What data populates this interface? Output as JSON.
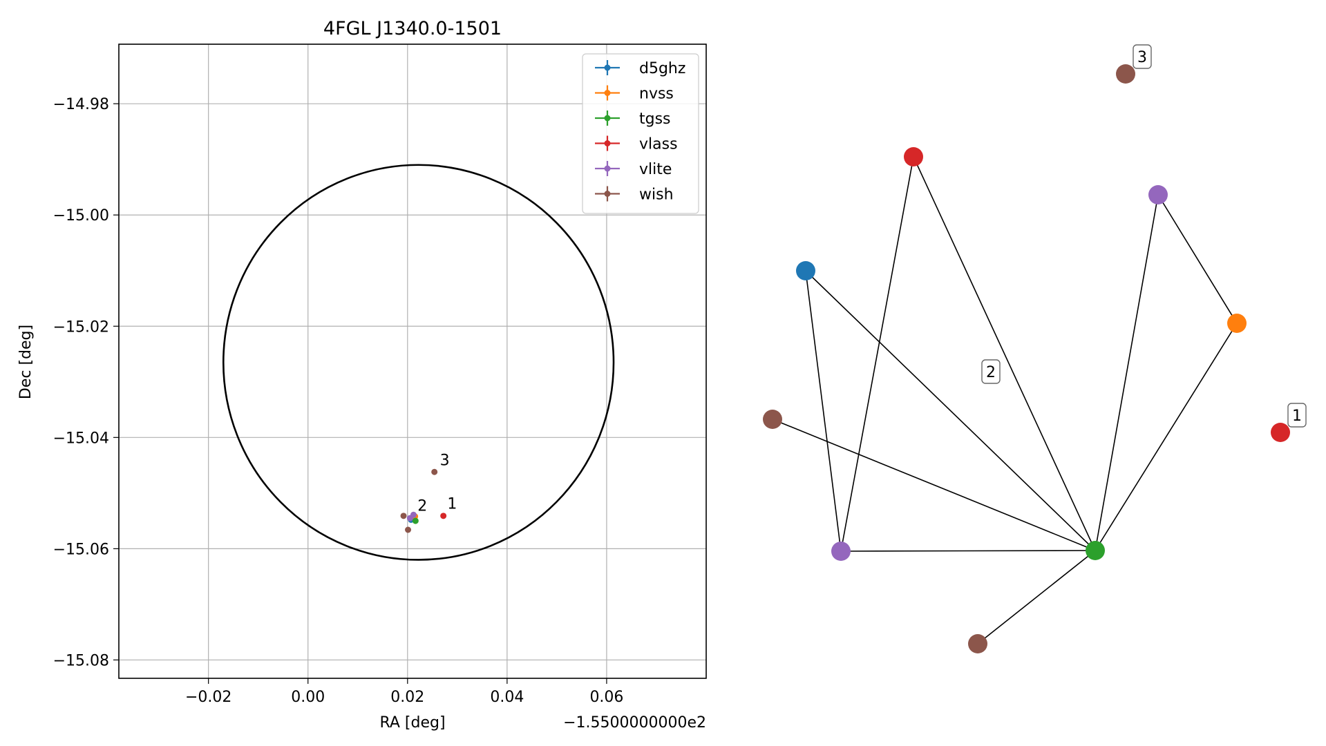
{
  "chart_data": [
    {
      "type": "scatter",
      "title": "4FGL J1340.0-1501",
      "xlabel": "RA [deg]",
      "ylabel": "Dec [deg]",
      "x_offset_label": "−1.5500000000e2",
      "xlim": [
        -0.038,
        0.08
      ],
      "ylim": [
        -15.0833,
        -14.9693
      ],
      "xticks": [
        -0.02,
        0.0,
        0.02,
        0.04,
        0.06
      ],
      "xtick_labels": [
        "−0.02",
        "0.00",
        "0.02",
        "0.04",
        "0.06"
      ],
      "yticks": [
        -14.98,
        -15.0,
        -15.02,
        -15.04,
        -15.06,
        -15.08
      ],
      "ytick_labels": [
        "−14.98",
        "−15.00",
        "−15.02",
        "−15.04",
        "−15.06",
        "−15.08"
      ],
      "grid": true,
      "legend_position": "upper-right",
      "circle": {
        "center_x": 0.0222,
        "center_y": -15.0265,
        "radius_x": 0.0392,
        "radius_y": 0.0355,
        "color": "#000000"
      },
      "series": [
        {
          "name": "d5ghz",
          "color": "#1f77b4",
          "points": [
            [
              0.0207,
              -15.0548
            ]
          ]
        },
        {
          "name": "nvss",
          "color": "#ff7f0e",
          "points": [
            [
              0.0215,
              -15.0542
            ]
          ]
        },
        {
          "name": "tgss",
          "color": "#2ca02c",
          "points": [
            [
              0.0216,
              -15.055
            ]
          ]
        },
        {
          "name": "vlass",
          "color": "#d62728",
          "points": [
            [
              0.0272,
              -15.0541
            ]
          ]
        },
        {
          "name": "vlite",
          "color": "#9467bd",
          "points": [
            [
              0.0205,
              -15.0545
            ],
            [
              0.0212,
              -15.0539
            ]
          ]
        },
        {
          "name": "wish",
          "color": "#8c564b",
          "points": [
            [
              0.0192,
              -15.0541
            ],
            [
              0.0201,
              -15.0566
            ],
            [
              0.0254,
              -15.0462
            ]
          ]
        }
      ],
      "annotations": [
        {
          "text": "1",
          "x": 0.028,
          "y": -15.0528
        },
        {
          "text": "2",
          "x": 0.022,
          "y": -15.0532
        },
        {
          "text": "3",
          "x": 0.0265,
          "y": -15.045
        }
      ]
    },
    {
      "type": "network",
      "nodes": [
        {
          "id": "wish_top",
          "color": "#8c564b"
        },
        {
          "id": "vlass_top",
          "color": "#d62728"
        },
        {
          "id": "vlite_top",
          "color": "#9467bd"
        },
        {
          "id": "d5ghz",
          "color": "#1f77b4"
        },
        {
          "id": "nvss",
          "color": "#ff7f0e"
        },
        {
          "id": "wish_left",
          "color": "#8c564b"
        },
        {
          "id": "vlass_right",
          "color": "#d62728"
        },
        {
          "id": "vlite_bottom",
          "color": "#9467bd"
        },
        {
          "id": "tgss",
          "color": "#2ca02c"
        },
        {
          "id": "wish_bottom",
          "color": "#8c564b"
        }
      ],
      "edges": [
        [
          "vlass_top",
          "vlite_bottom"
        ],
        [
          "vlass_top",
          "tgss"
        ],
        [
          "vlite_top",
          "nvss"
        ],
        [
          "vlite_top",
          "tgss"
        ],
        [
          "d5ghz",
          "vlite_bottom"
        ],
        [
          "d5ghz",
          "tgss"
        ],
        [
          "nvss",
          "tgss"
        ],
        [
          "wish_left",
          "tgss"
        ],
        [
          "vlite_bottom",
          "tgss"
        ],
        [
          "tgss",
          "wish_bottom"
        ]
      ],
      "labels": [
        {
          "text": "3",
          "anchor": "wish_top"
        },
        {
          "text": "2",
          "anchor": "center"
        },
        {
          "text": "1",
          "anchor": "vlass_right"
        }
      ]
    }
  ]
}
